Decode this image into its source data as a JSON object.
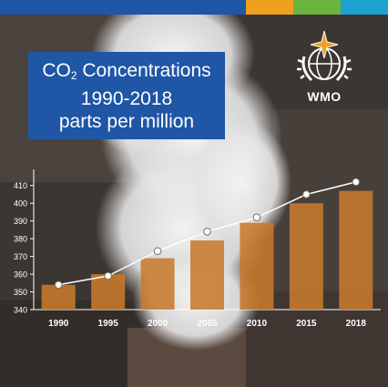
{
  "header": {
    "title_prefix": "CO",
    "title_subscript": "2",
    "title_suffix": " Concentrations",
    "years_line": "1990-2018",
    "units_line": "parts per million"
  },
  "logo": {
    "text": "WMO",
    "icon": "wmo-emblem-icon"
  },
  "colors": {
    "bar": "#c77a2c",
    "line": "#ffffff",
    "title_bg": "#1f56a6",
    "stripe_orange": "#f0a01c",
    "stripe_green": "#6db33f",
    "stripe_cyan": "#1aa3cf"
  },
  "chart_data": {
    "type": "bar",
    "categories": [
      "1990",
      "1995",
      "2000",
      "2005",
      "2010",
      "2015",
      "2018"
    ],
    "values": [
      354,
      360,
      369,
      379,
      389,
      400,
      407
    ],
    "line_values": [
      354,
      359,
      373,
      384,
      392,
      405,
      412
    ],
    "y_ticks": [
      340,
      350,
      360,
      370,
      380,
      390,
      400,
      410
    ],
    "ylim": [
      340,
      415
    ],
    "grid": false,
    "legend": "none"
  }
}
